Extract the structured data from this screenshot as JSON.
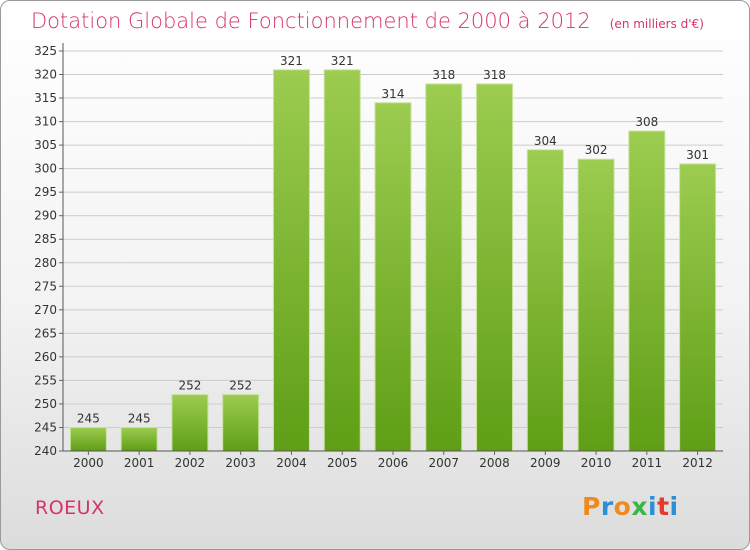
{
  "header": {
    "title": "Dotation Globale de Fonctionnement de 2000 à 2012",
    "unit_note": "(en milliers d'€)"
  },
  "footer": {
    "commune": "ROEUX",
    "brand": "Proxiti"
  },
  "colors": {
    "accent_text": "#d6336e",
    "bar_top": "#9ccc50",
    "bar_bottom": "#5f9e16",
    "grid": "#cccccc",
    "logo_letters": [
      "#f08a1c",
      "#2a8fd6",
      "#f08a1c",
      "#3ab54a",
      "#2a8fd6",
      "#e23c2e",
      "#2a8fd6"
    ]
  },
  "chart_data": {
    "type": "bar",
    "title": "Dotation Globale de Fonctionnement de 2000 à 2012",
    "subtitle": "(en milliers d'€)",
    "categories": [
      "2000",
      "2001",
      "2002",
      "2003",
      "2004",
      "2005",
      "2006",
      "2007",
      "2008",
      "2009",
      "2010",
      "2011",
      "2012"
    ],
    "values": [
      245,
      245,
      252,
      252,
      321,
      321,
      314,
      318,
      318,
      304,
      302,
      308,
      301
    ],
    "ylim": [
      240,
      325
    ],
    "yticks": [
      240,
      245,
      250,
      255,
      260,
      265,
      270,
      275,
      280,
      285,
      290,
      295,
      300,
      305,
      310,
      315,
      320,
      325
    ],
    "grid": true,
    "legend": "none"
  }
}
